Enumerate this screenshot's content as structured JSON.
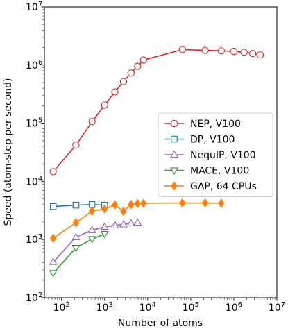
{
  "chart_data": {
    "type": "line",
    "xlabel": "Number of atoms",
    "ylabel": "Speed (atom-step per second)",
    "xscale": "log",
    "yscale": "log",
    "xlim": [
      40,
      10000000
    ],
    "ylim": [
      100,
      10000000
    ],
    "xticks": [
      {
        "value": 100,
        "base": "10",
        "exp": "2"
      },
      {
        "value": 1000,
        "base": "10",
        "exp": "3"
      },
      {
        "value": 10000,
        "base": "10",
        "exp": "4"
      },
      {
        "value": 100000,
        "base": "10",
        "exp": "5"
      },
      {
        "value": 1000000,
        "base": "10",
        "exp": "6"
      },
      {
        "value": 10000000,
        "base": "10",
        "exp": "7"
      }
    ],
    "yticks": [
      {
        "value": 100,
        "base": "10",
        "exp": "2"
      },
      {
        "value": 1000,
        "base": "10",
        "exp": "3"
      },
      {
        "value": 10000,
        "base": "10",
        "exp": "4"
      },
      {
        "value": 100000,
        "base": "10",
        "exp": "5"
      },
      {
        "value": 1000000,
        "base": "10",
        "exp": "6"
      },
      {
        "value": 10000000,
        "base": "10",
        "exp": "7"
      }
    ],
    "grid": false,
    "legend_position": "right",
    "series": [
      {
        "name": "NEP, V100",
        "color": "#d62728",
        "marker": "circle",
        "filled": false,
        "x": [
          64,
          216,
          512,
          1000,
          1728,
          2744,
          4096,
          5832,
          8000,
          64000,
          216000,
          512000,
          1000000,
          1728000,
          2744000,
          4096000
        ],
        "y": [
          14700,
          42000,
          107000,
          205000,
          345000,
          520000,
          730000,
          950000,
          1220000,
          1850000,
          1790000,
          1760000,
          1720000,
          1660000,
          1580000,
          1490000
        ]
      },
      {
        "name": "DP, V100",
        "color": "#1f77b4",
        "marker": "square",
        "filled": false,
        "x": [
          64,
          216,
          512,
          1000
        ],
        "y": [
          3700,
          3900,
          4000,
          3900
        ]
      },
      {
        "name": "NequIP, V100",
        "color": "#9467bd",
        "marker": "triangle-up",
        "filled": false,
        "x": [
          64,
          216,
          512,
          1000,
          1728,
          2744,
          4096,
          5832
        ],
        "y": [
          410,
          1100,
          1450,
          1650,
          1750,
          1820,
          1900,
          1950
        ]
      },
      {
        "name": "MACE, V100",
        "color": "#2ca02c",
        "marker": "triangle-down",
        "filled": false,
        "x": [
          64,
          216,
          512,
          1000
        ],
        "y": [
          265,
          720,
          1020,
          1250
        ]
      },
      {
        "name": "GAP, 64 CPUs",
        "color": "#ff7f0e",
        "marker": "diamond",
        "filled": true,
        "x": [
          64,
          216,
          512,
          1000,
          1728,
          2744,
          4096,
          5832,
          8000,
          64000,
          216000,
          512000
        ],
        "y": [
          1050,
          1950,
          3100,
          3350,
          3950,
          3050,
          4000,
          4150,
          4200,
          4250,
          4250,
          4200
        ]
      }
    ]
  }
}
